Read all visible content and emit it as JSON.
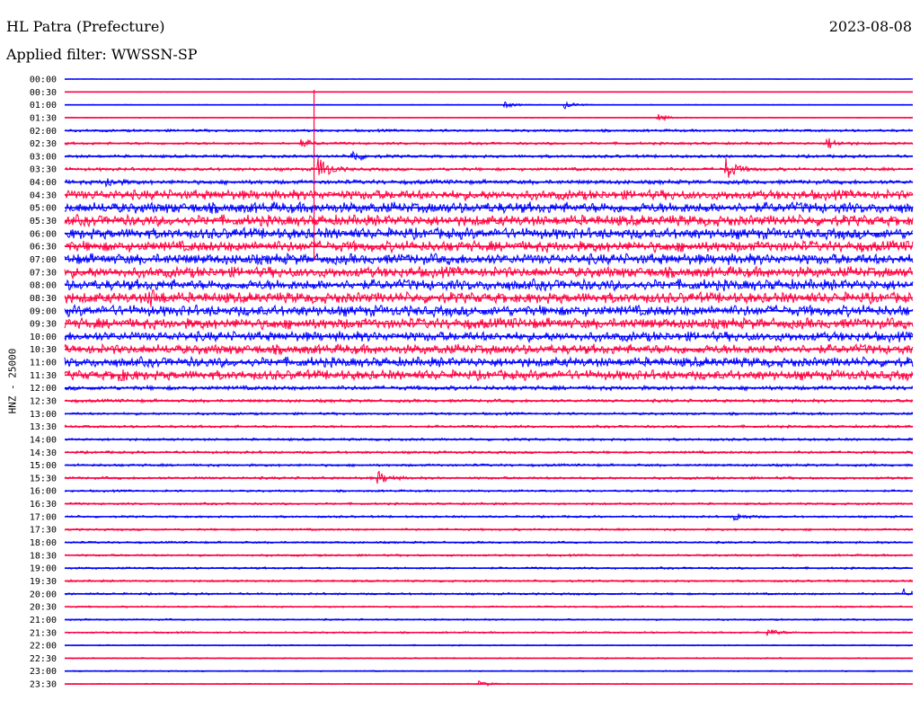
{
  "header": {
    "station": "HL Patra (Prefecture)",
    "date": "2023-08-08",
    "filter_label": "Applied filter: WWSSN-SP"
  },
  "chart_data": {
    "type": "line",
    "ylabel": "HNZ - 25000",
    "rows": [
      "00:00",
      "00:30",
      "01:00",
      "01:30",
      "02:00",
      "02:30",
      "03:00",
      "03:30",
      "04:00",
      "04:30",
      "05:00",
      "05:30",
      "06:00",
      "06:30",
      "07:00",
      "07:30",
      "08:00",
      "08:30",
      "09:00",
      "09:30",
      "10:00",
      "10:30",
      "11:00",
      "11:30",
      "12:00",
      "12:30",
      "13:00",
      "13:30",
      "14:00",
      "14:30",
      "15:00",
      "15:30",
      "16:00",
      "16:30",
      "17:00",
      "17:30",
      "18:00",
      "18:30",
      "19:00",
      "19:30",
      "20:00",
      "20:30",
      "21:00",
      "21:30",
      "22:00",
      "22:30",
      "23:00",
      "23:30"
    ],
    "colors": [
      "#0000ff",
      "#ff0040"
    ],
    "noise_amplitude": [
      0.3,
      0.3,
      0.4,
      0.4,
      1.2,
      1.2,
      1.4,
      1.5,
      2.0,
      4.5,
      5.0,
      5.0,
      5.0,
      5.0,
      5.0,
      5.0,
      5.0,
      5.0,
      5.0,
      5.0,
      4.5,
      4.5,
      4.5,
      4.5,
      2.0,
      1.5,
      1.2,
      1.2,
      1.2,
      1.2,
      1.2,
      1.2,
      1.0,
      1.0,
      1.0,
      1.0,
      1.0,
      1.0,
      1.0,
      1.0,
      1.0,
      0.8,
      0.8,
      0.8,
      0.6,
      0.6,
      0.6,
      0.5
    ],
    "events": [
      {
        "row": 2,
        "t": 0.52,
        "amp": 3
      },
      {
        "row": 2,
        "t": 0.59,
        "amp": 4
      },
      {
        "row": 3,
        "t": 0.7,
        "amp": 4
      },
      {
        "row": 5,
        "t": 0.28,
        "amp": 4
      },
      {
        "row": 5,
        "t": 0.9,
        "amp": 6
      },
      {
        "row": 6,
        "t": 0.34,
        "amp": 6
      },
      {
        "row": 7,
        "t": 0.3,
        "amp": 14
      },
      {
        "row": 7,
        "t": 0.78,
        "amp": 12
      },
      {
        "row": 8,
        "t": 0.05,
        "amp": 5
      },
      {
        "row": 17,
        "t": 0.1,
        "amp": 8
      },
      {
        "row": 23,
        "t": 0.06,
        "amp": 6
      },
      {
        "row": 31,
        "t": 0.37,
        "amp": 7
      },
      {
        "row": 34,
        "t": 0.79,
        "amp": 5
      },
      {
        "row": 40,
        "t": 0.99,
        "amp": 5
      },
      {
        "row": 43,
        "t": 0.83,
        "amp": 4
      },
      {
        "row": 47,
        "t": 0.49,
        "amp": 3
      }
    ]
  }
}
